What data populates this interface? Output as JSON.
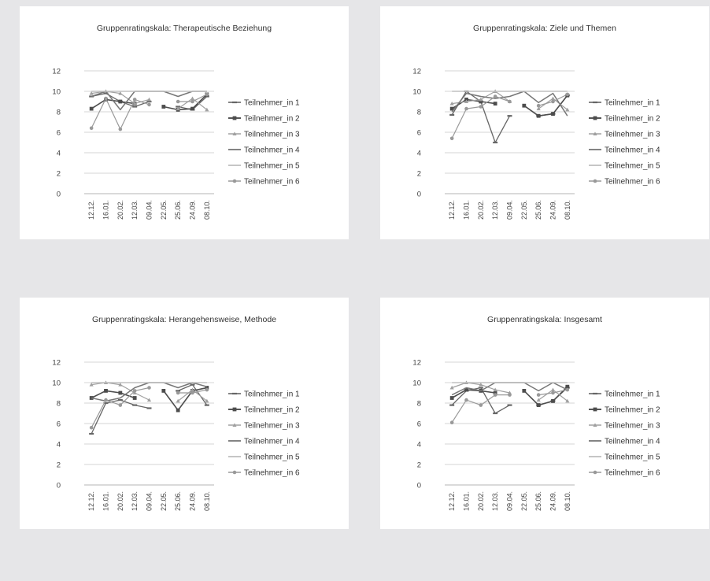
{
  "colors": {
    "background": "#e6e6e8",
    "panel": "#ffffff",
    "grid": "#d0d0d0",
    "axis_text": "#444444"
  },
  "legend_labels": [
    "Teilnehmer_in 1",
    "Teilnehmer_in 2",
    "Teilnehmer_in 3",
    "Teilnehmer_in 4",
    "Teilnehmer_in 5",
    "Teilnehmer_in 6"
  ],
  "chart_data": [
    {
      "type": "line",
      "title": "Gruppenratingskala: Therapeutische Beziehung",
      "categories": [
        "12.12.",
        "16.01.",
        "20.02.",
        "12.03.",
        "09.04.",
        "22.05.",
        "25.06.",
        "24.09.",
        "08.10."
      ],
      "yticks": [
        "0",
        "2",
        "4",
        "6",
        "8",
        "10",
        "12"
      ],
      "ylim": [
        0,
        12
      ],
      "legend": "right",
      "grid": true,
      "series": [
        {
          "name": "Teilnehmer_in 1",
          "values": [
            9.5,
            9.8,
            9.0,
            8.5,
            9.0,
            null,
            8.5,
            8.2,
            9.5
          ]
        },
        {
          "name": "Teilnehmer_in 2",
          "values": [
            8.3,
            9.2,
            9.0,
            8.8,
            null,
            8.5,
            8.2,
            8.3,
            9.7
          ]
        },
        {
          "name": "Teilnehmer_in 3",
          "values": [
            9.8,
            10.0,
            9.8,
            8.8,
            9.2,
            null,
            8.3,
            9.3,
            8.2
          ]
        },
        {
          "name": "Teilnehmer_in 4",
          "values": [
            9.5,
            10.0,
            8.2,
            10.0,
            10.0,
            10.0,
            9.5,
            10.0,
            10.0
          ]
        },
        {
          "name": "Teilnehmer_in 5",
          "values": [
            10.0,
            10.0,
            10.0,
            10.0,
            10.0,
            10.0,
            10.0,
            10.0,
            10.0
          ]
        },
        {
          "name": "Teilnehmer_in 6",
          "values": [
            6.4,
            9.3,
            6.3,
            9.2,
            8.7,
            null,
            9.0,
            9.0,
            9.7
          ]
        }
      ]
    },
    {
      "type": "line",
      "title": "Gruppenratingskala: Ziele und Themen",
      "categories": [
        "12.12.",
        "16.01.",
        "20.02.",
        "12.03.",
        "09.04.",
        "22.05.",
        "25.06.",
        "24.09.",
        "08.10."
      ],
      "yticks": [
        "0",
        "2",
        "4",
        "6",
        "8",
        "10",
        "12"
      ],
      "ylim": [
        0,
        12
      ],
      "legend": "right",
      "grid": true,
      "series": [
        {
          "name": "Teilnehmer_in 1",
          "values": [
            7.7,
            10.0,
            9.0,
            5.0,
            7.6,
            null,
            7.6,
            7.8,
            9.6
          ]
        },
        {
          "name": "Teilnehmer_in 2",
          "values": [
            8.3,
            9.2,
            9.0,
            8.8,
            null,
            8.6,
            7.6,
            7.8,
            9.6
          ]
        },
        {
          "name": "Teilnehmer_in 3",
          "values": [
            8.8,
            9.0,
            9.2,
            10.0,
            9.0,
            null,
            8.3,
            9.3,
            8.2
          ]
        },
        {
          "name": "Teilnehmer_in 4",
          "values": [
            8.0,
            9.8,
            9.5,
            9.3,
            9.5,
            10.0,
            8.9,
            9.8,
            7.6
          ]
        },
        {
          "name": "Teilnehmer_in 5",
          "values": [
            10.0,
            10.0,
            10.0,
            10.0,
            10.0,
            10.0,
            10.0,
            10.0,
            10.0
          ]
        },
        {
          "name": "Teilnehmer_in 6",
          "values": [
            5.4,
            8.3,
            8.5,
            9.5,
            9.0,
            null,
            8.6,
            9.0,
            9.7
          ]
        }
      ]
    },
    {
      "type": "line",
      "title": "Gruppenratingskala: Herangehensweise, Methode",
      "categories": [
        "12.12.",
        "16.01.",
        "20.02.",
        "12.03.",
        "09.04.",
        "22.05.",
        "25.06.",
        "24.09.",
        "08.10."
      ],
      "yticks": [
        "0",
        "2",
        "4",
        "6",
        "8",
        "10",
        "12"
      ],
      "ylim": [
        0,
        12
      ],
      "legend": "right",
      "grid": true,
      "series": [
        {
          "name": "Teilnehmer_in 1",
          "values": [
            5.0,
            8.0,
            8.3,
            7.8,
            7.5,
            null,
            9.2,
            9.8,
            7.8
          ]
        },
        {
          "name": "Teilnehmer_in 2",
          "values": [
            8.5,
            9.2,
            9.0,
            8.5,
            null,
            9.2,
            7.3,
            9.2,
            9.5
          ]
        },
        {
          "name": "Teilnehmer_in 3",
          "values": [
            9.8,
            10.0,
            9.8,
            9.0,
            8.3,
            null,
            8.2,
            9.3,
            8.2
          ]
        },
        {
          "name": "Teilnehmer_in 4",
          "values": [
            8.5,
            8.2,
            8.5,
            9.5,
            10.0,
            10.0,
            9.5,
            10.0,
            9.6
          ]
        },
        {
          "name": "Teilnehmer_in 5",
          "values": [
            10.0,
            10.0,
            10.0,
            10.0,
            10.0,
            10.0,
            10.0,
            10.0,
            10.0
          ]
        },
        {
          "name": "Teilnehmer_in 6",
          "values": [
            5.6,
            8.3,
            7.8,
            9.2,
            9.5,
            null,
            9.0,
            9.0,
            9.3
          ]
        }
      ]
    },
    {
      "type": "line",
      "title": "Gruppenratingskala: Insgesamt",
      "categories": [
        "12.12.",
        "16.01.",
        "20.02.",
        "12.03.",
        "09.04.",
        "22.05.",
        "25.06.",
        "24.09.",
        "08.10."
      ],
      "yticks": [
        "0",
        "2",
        "4",
        "6",
        "8",
        "10",
        "12"
      ],
      "ylim": [
        0,
        12
      ],
      "legend": "right",
      "grid": true,
      "series": [
        {
          "name": "Teilnehmer_in 1",
          "values": [
            7.8,
            9.2,
            9.5,
            7.0,
            7.8,
            null,
            7.8,
            8.2,
            9.5
          ]
        },
        {
          "name": "Teilnehmer_in 2",
          "values": [
            8.5,
            9.3,
            9.2,
            9.0,
            null,
            9.2,
            7.8,
            8.2,
            9.6
          ]
        },
        {
          "name": "Teilnehmer_in 3",
          "values": [
            9.5,
            10.0,
            9.8,
            9.3,
            9.0,
            null,
            8.3,
            9.3,
            8.2
          ]
        },
        {
          "name": "Teilnehmer_in 4",
          "values": [
            8.8,
            9.5,
            9.2,
            10.0,
            10.0,
            10.0,
            9.2,
            10.0,
            9.3
          ]
        },
        {
          "name": "Teilnehmer_in 5",
          "values": [
            10.0,
            10.0,
            10.0,
            10.0,
            10.0,
            10.0,
            10.0,
            10.0,
            10.0
          ]
        },
        {
          "name": "Teilnehmer_in 6",
          "values": [
            6.1,
            8.3,
            7.8,
            8.8,
            8.8,
            null,
            8.8,
            9.0,
            9.3
          ]
        }
      ]
    }
  ]
}
